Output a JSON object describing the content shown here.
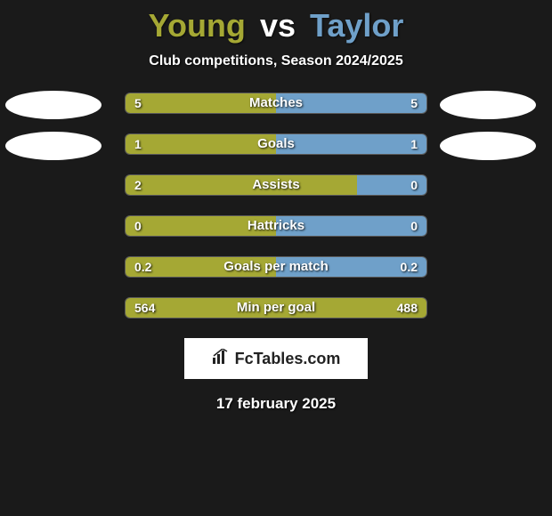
{
  "title": {
    "player1": "Young",
    "vs": "vs",
    "player2": "Taylor"
  },
  "subtitle": "Club competitions, Season 2024/2025",
  "colors": {
    "p1": "#a5a834",
    "p2": "#6fa0c9",
    "track_bg": "#2d2d2d",
    "track_border": "#5a5a5a",
    "background": "#1a1a1a"
  },
  "stats": [
    {
      "label": "Matches",
      "v1": "5",
      "v2": "5",
      "pct1": 50,
      "pct2": 50,
      "show_photos": true
    },
    {
      "label": "Goals",
      "v1": "1",
      "v2": "1",
      "pct1": 50,
      "pct2": 50,
      "show_photos": true
    },
    {
      "label": "Assists",
      "v1": "2",
      "v2": "0",
      "pct1": 77,
      "pct2": 23,
      "show_photos": false
    },
    {
      "label": "Hattricks",
      "v1": "0",
      "v2": "0",
      "pct1": 50,
      "pct2": 50,
      "show_photos": false
    },
    {
      "label": "Goals per match",
      "v1": "0.2",
      "v2": "0.2",
      "pct1": 50,
      "pct2": 50,
      "show_photos": false
    },
    {
      "label": "Min per goal",
      "v1": "564",
      "v2": "488",
      "pct1": 100,
      "pct2": 0,
      "show_photos": false
    }
  ],
  "logo": {
    "text": "FcTables.com"
  },
  "date": "17 february 2025"
}
